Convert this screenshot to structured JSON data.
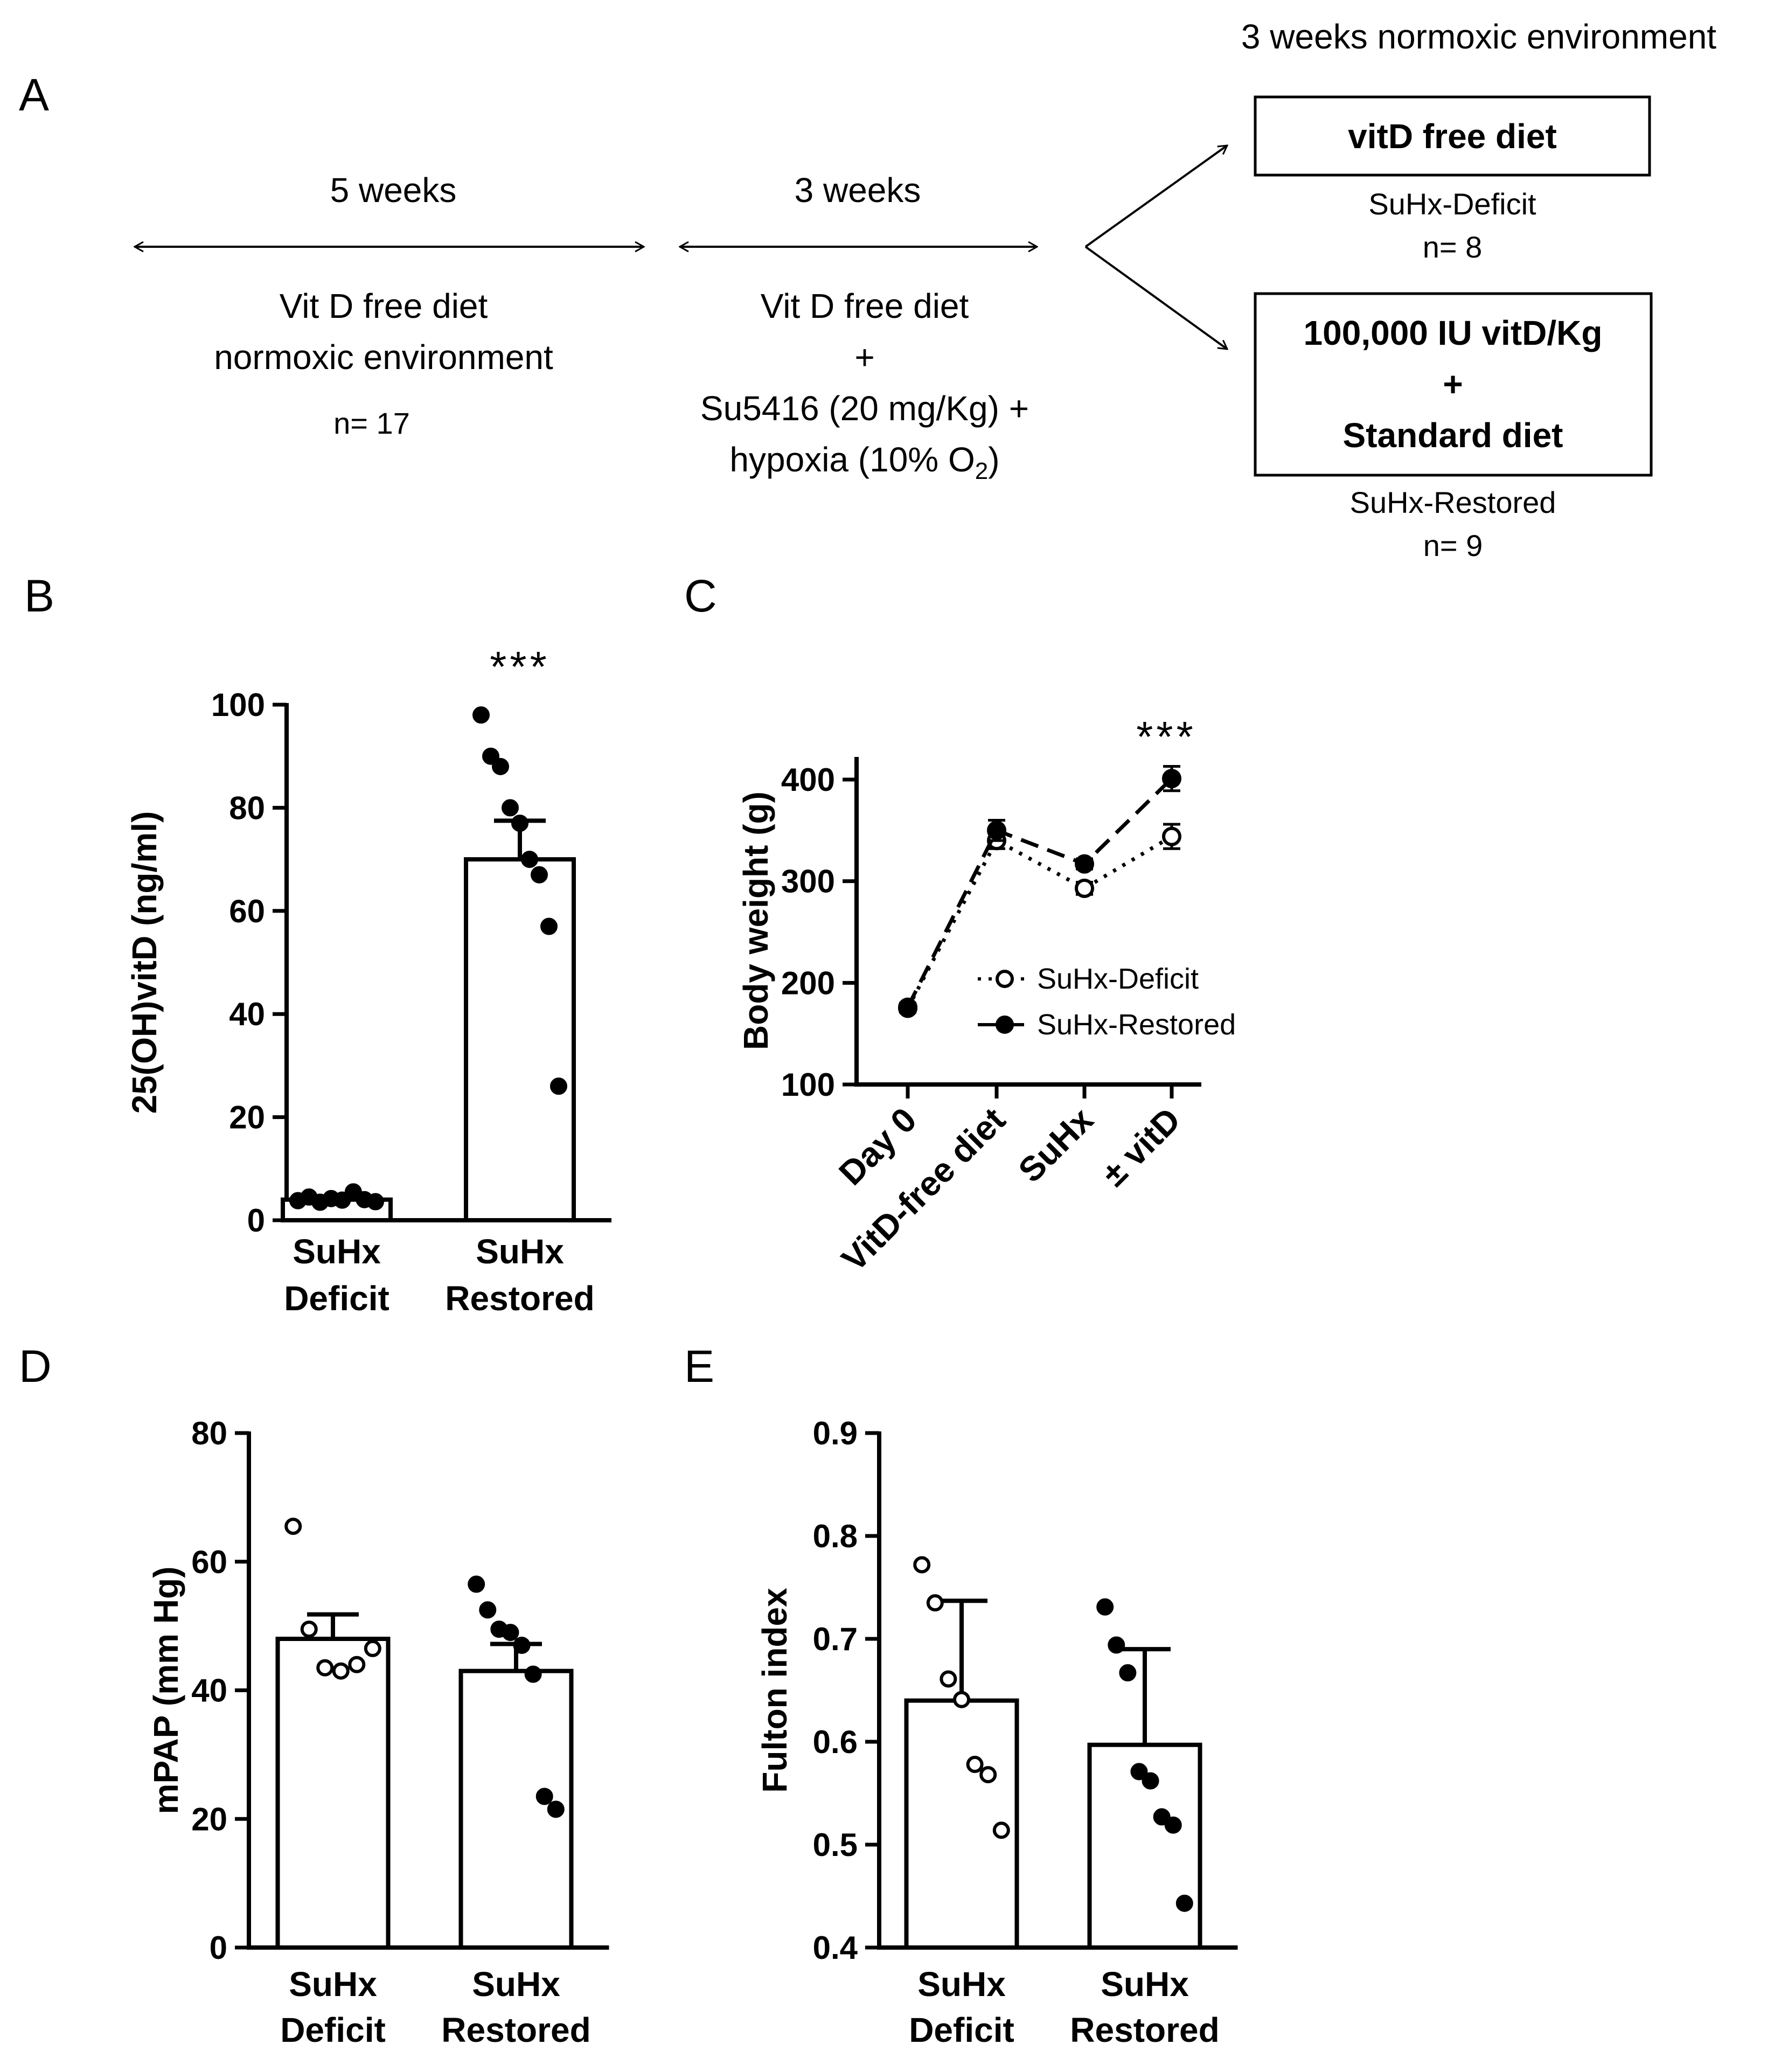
{
  "panels": {
    "A": "A",
    "B": "B",
    "C": "C",
    "D": "D",
    "E": "E"
  },
  "schematic": {
    "phase1_duration": "5 weeks",
    "phase1_line1": "Vit D free diet",
    "phase1_line2": "normoxic environment",
    "phase1_n": "n= 17",
    "phase2_duration": "3 weeks",
    "phase2_line1": "Vit D free diet",
    "phase2_plus": "+",
    "phase2_line3": "Su5416 (20 mg/Kg) +",
    "phase2_line4_prefix": "hypoxia (10% O",
    "phase2_line4_sub": "2",
    "phase2_line4_suffix": ")",
    "phase3_title": "3 weeks normoxic environment",
    "box1_text": "vitD free diet",
    "group1_name": "SuHx-Deficit",
    "group1_n": "n= 8",
    "box2_line1": "100,000 IU vitD/Kg",
    "box2_line2": "+",
    "box2_line3": "Standard diet",
    "group2_name": "SuHx-Restored",
    "group2_n": "n= 9"
  },
  "chart_data": [
    {
      "panel": "B",
      "type": "bar",
      "ylabel": "25(OH)vitD (ng/ml)",
      "ylim": [
        0,
        100
      ],
      "yticks": [
        "0",
        "20",
        "40",
        "60",
        "80",
        "100"
      ],
      "categories": [
        [
          "SuHx",
          "Deficit"
        ],
        [
          "SuHx",
          "Restored"
        ]
      ],
      "values": [
        4,
        70
      ],
      "sem": [
        0.5,
        7.5
      ],
      "points": [
        [
          3.8,
          4.5,
          3.5,
          4.2,
          3.9,
          5.5,
          4.0,
          3.6
        ],
        [
          98,
          90,
          88,
          80,
          77,
          70,
          67,
          57,
          26
        ]
      ],
      "significance": "***"
    },
    {
      "panel": "C",
      "type": "line",
      "ylabel": "Body weight (g)",
      "ylim": [
        100,
        420
      ],
      "yticks": [
        "100",
        "200",
        "300",
        "400"
      ],
      "categories": [
        "Day 0",
        "VitD-free diet",
        "SuHx",
        "± vitD"
      ],
      "series": [
        {
          "name": "SuHx-Deficit",
          "values": [
            175,
            340,
            293,
            344
          ],
          "err": [
            4,
            8,
            6,
            12
          ]
        },
        {
          "name": "SuHx-Restored",
          "values": [
            176,
            350,
            317,
            401
          ],
          "err": [
            4,
            10,
            5,
            12
          ]
        }
      ],
      "significance": "***"
    },
    {
      "panel": "D",
      "type": "bar",
      "ylabel": "mPAP (mm Hg)",
      "ylim": [
        0,
        80
      ],
      "yticks": [
        "0",
        "20",
        "40",
        "60",
        "80"
      ],
      "categories": [
        [
          "SuHx",
          "Deficit"
        ],
        [
          "SuHx",
          "Restored"
        ]
      ],
      "values": [
        48,
        43
      ],
      "sem": [
        3.8,
        4.2
      ],
      "points": [
        [
          65.5,
          49.5,
          43.5,
          43.0,
          44.0,
          46.5
        ],
        [
          56.5,
          52.5,
          49.5,
          49.0,
          47.0,
          42.5,
          23.5,
          21.5
        ]
      ]
    },
    {
      "panel": "E",
      "type": "bar",
      "ylabel": "Fulton index",
      "ylim": [
        0.4,
        0.9
      ],
      "yticks": [
        "0.4",
        "0.5",
        "0.6",
        "0.7",
        "0.8",
        "0.9"
      ],
      "categories": [
        [
          "SuHx",
          "Deficit"
        ],
        [
          "SuHx",
          "Restored"
        ]
      ],
      "values": [
        0.64,
        0.597
      ],
      "sd": [
        0.097,
        0.093
      ],
      "points": [
        [
          0.772,
          0.735,
          0.661,
          0.641,
          0.578,
          0.568,
          0.514
        ],
        [
          0.731,
          0.694,
          0.667,
          0.571,
          0.562,
          0.527,
          0.519,
          0.443
        ]
      ]
    }
  ]
}
